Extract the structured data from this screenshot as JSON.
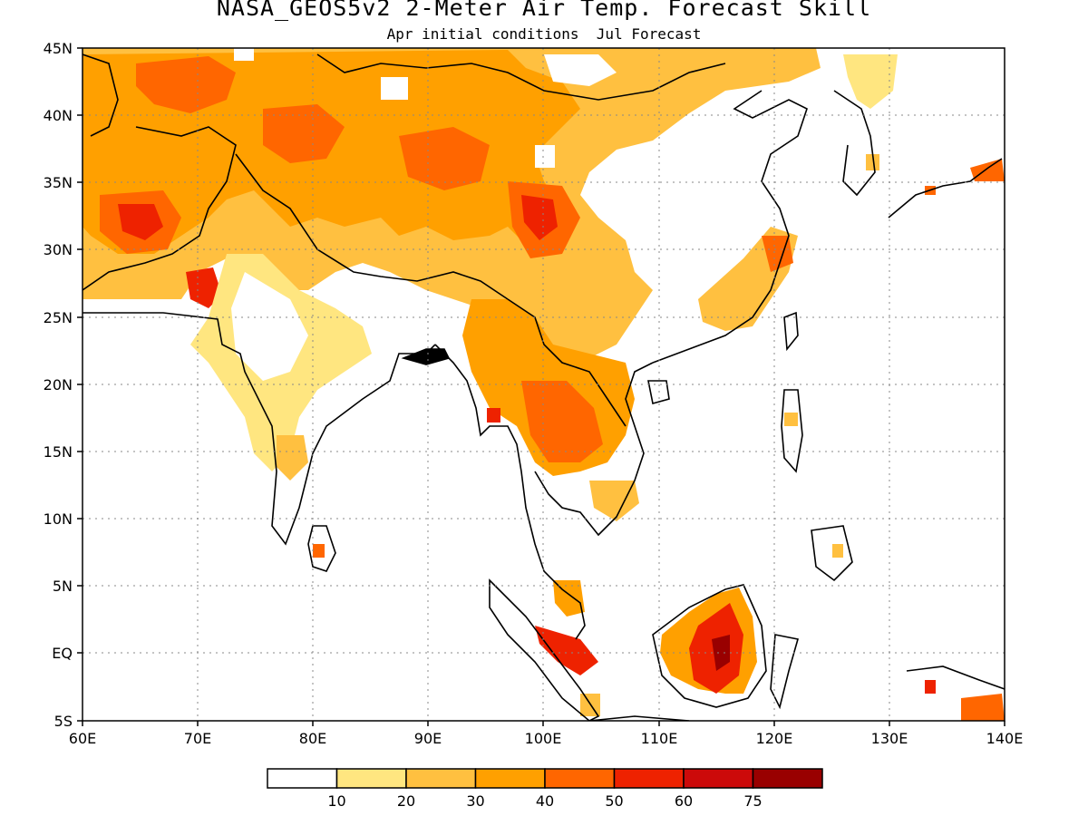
{
  "title": "NASA_GEOS5v2 2-Meter Air Temp. Forecast Skill",
  "subtitle": "Apr initial conditions  Jul Forecast",
  "map": {
    "lon_range": [
      60,
      140
    ],
    "lat_range": [
      -5,
      45
    ],
    "lon_ticks": [
      "60E",
      "70E",
      "80E",
      "90E",
      "100E",
      "110E",
      "120E",
      "130E",
      "140E"
    ],
    "lat_ticks": [
      "45N",
      "40N",
      "35N",
      "30N",
      "25N",
      "20N",
      "15N",
      "10N",
      "5N",
      "EQ",
      "5S"
    ],
    "grid": "dotted"
  },
  "legend": {
    "labels": [
      "10",
      "20",
      "30",
      "40",
      "50",
      "60",
      "75"
    ],
    "colors": [
      "#ffffff",
      "#ffe680",
      "#ffc040",
      "#ffa000",
      "#ff6600",
      "#ee2200",
      "#cc0a0a",
      "#990000"
    ]
  }
}
